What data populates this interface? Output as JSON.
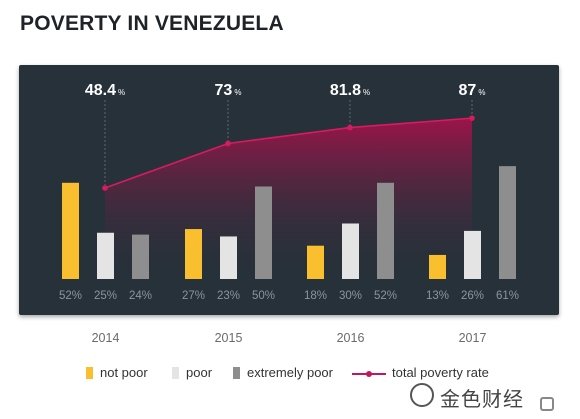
{
  "title": "POVERTY IN VENEZUELA",
  "colors": {
    "panel": "#27313a",
    "not_poor": "#f9bf2f",
    "poor": "#e4e4e4",
    "extremely_poor": "#8e8e8e",
    "total_line": "#d81b60",
    "label": "#8d949a"
  },
  "chart_data": {
    "type": "bar",
    "categories": [
      "2014",
      "2015",
      "2016",
      "2017"
    ],
    "series": [
      {
        "name": "not poor",
        "values": [
          52,
          27,
          18,
          13
        ],
        "labels": [
          "52%",
          "27%",
          "18%",
          "13%"
        ]
      },
      {
        "name": "poor",
        "values": [
          25,
          23,
          30,
          26
        ],
        "labels": [
          "25%",
          "23%",
          "30%",
          "26%"
        ]
      },
      {
        "name": "extremely poor",
        "values": [
          24,
          50,
          52,
          61
        ],
        "labels": [
          "24%",
          "50%",
          "52%",
          "61%"
        ]
      }
    ],
    "line": {
      "name": "total poverty rate",
      "values": [
        48.4,
        73,
        81.8,
        87
      ],
      "labels": [
        "48.4",
        "73",
        "81.8",
        "87"
      ],
      "unit": "%"
    },
    "legend_position": "bottom",
    "grid": false
  },
  "legend": {
    "not_poor": "not poor",
    "poor": "poor",
    "extremely_poor": "extremely poor",
    "total": "total poverty rate"
  },
  "watermark": {
    "text": "金色财经",
    "icon": "coin-logo-icon"
  }
}
